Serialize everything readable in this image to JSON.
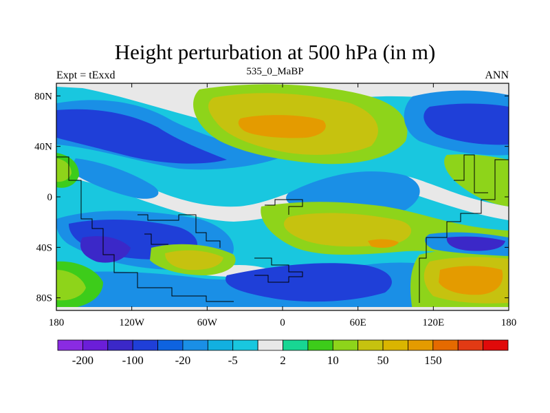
{
  "title": "Height perturbation at 500 hPa (in m)",
  "left_string": "Expt = tExxd",
  "center_string": "535_0_MaBP",
  "right_string": "ANN",
  "map": {
    "projection": "cylindrical-equidistant",
    "lon_range": [
      -180,
      180
    ],
    "lat_range": [
      -90,
      90
    ],
    "lat_ticks": [
      "80N",
      "40N",
      "0",
      "40S",
      "80S"
    ],
    "lon_ticks": [
      "180",
      "120W",
      "60W",
      "0",
      "60E",
      "120E",
      "180"
    ]
  },
  "colorbar": {
    "colors": [
      "#8a2be2",
      "#6b1ed8",
      "#3b28c8",
      "#1f3fd8",
      "#0e63e0",
      "#1a8fe6",
      "#12b0e0",
      "#19c7df",
      "#e8e8e8",
      "#18d693",
      "#3dcc1a",
      "#8ed41a",
      "#c6c20f",
      "#dab500",
      "#e49b00",
      "#e56a00",
      "#e23a14",
      "#e00a0a"
    ],
    "tick_labels": [
      "-200",
      "-100",
      "-20",
      "-5",
      "2",
      "10",
      "50",
      "150"
    ]
  }
}
